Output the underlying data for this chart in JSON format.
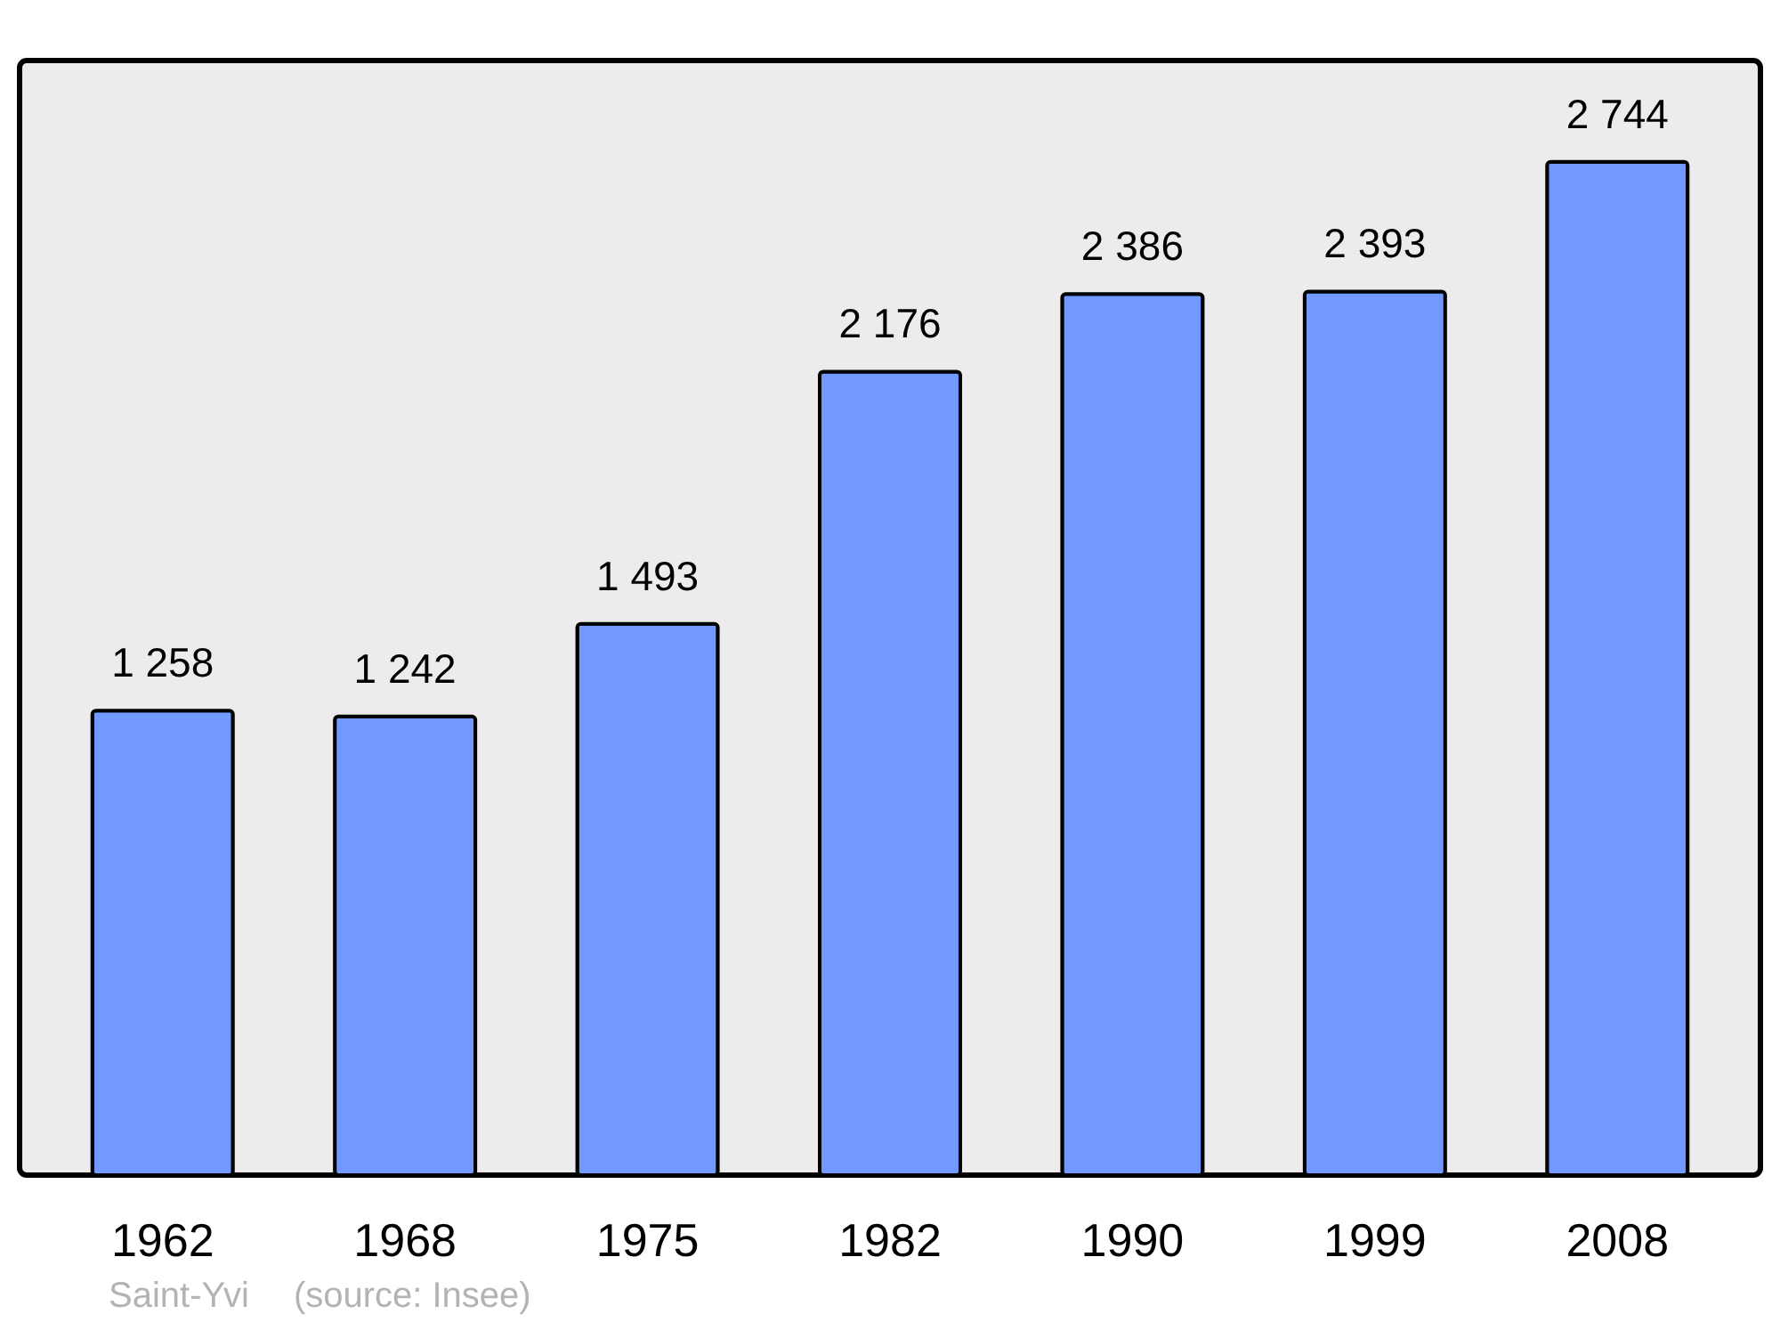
{
  "chart_data": {
    "type": "bar",
    "categories": [
      "1962",
      "1968",
      "1975",
      "1982",
      "1990",
      "1999",
      "2008"
    ],
    "values": [
      1258,
      1242,
      1493,
      2176,
      2386,
      2393,
      2744
    ],
    "value_labels": [
      "1 258",
      "1 242",
      "1 493",
      "2 176",
      "2 386",
      "2 393",
      "2 744"
    ],
    "color": "#7199ff",
    "annotations": [
      "Saint-Yvi",
      "(source: Insee)"
    ]
  }
}
